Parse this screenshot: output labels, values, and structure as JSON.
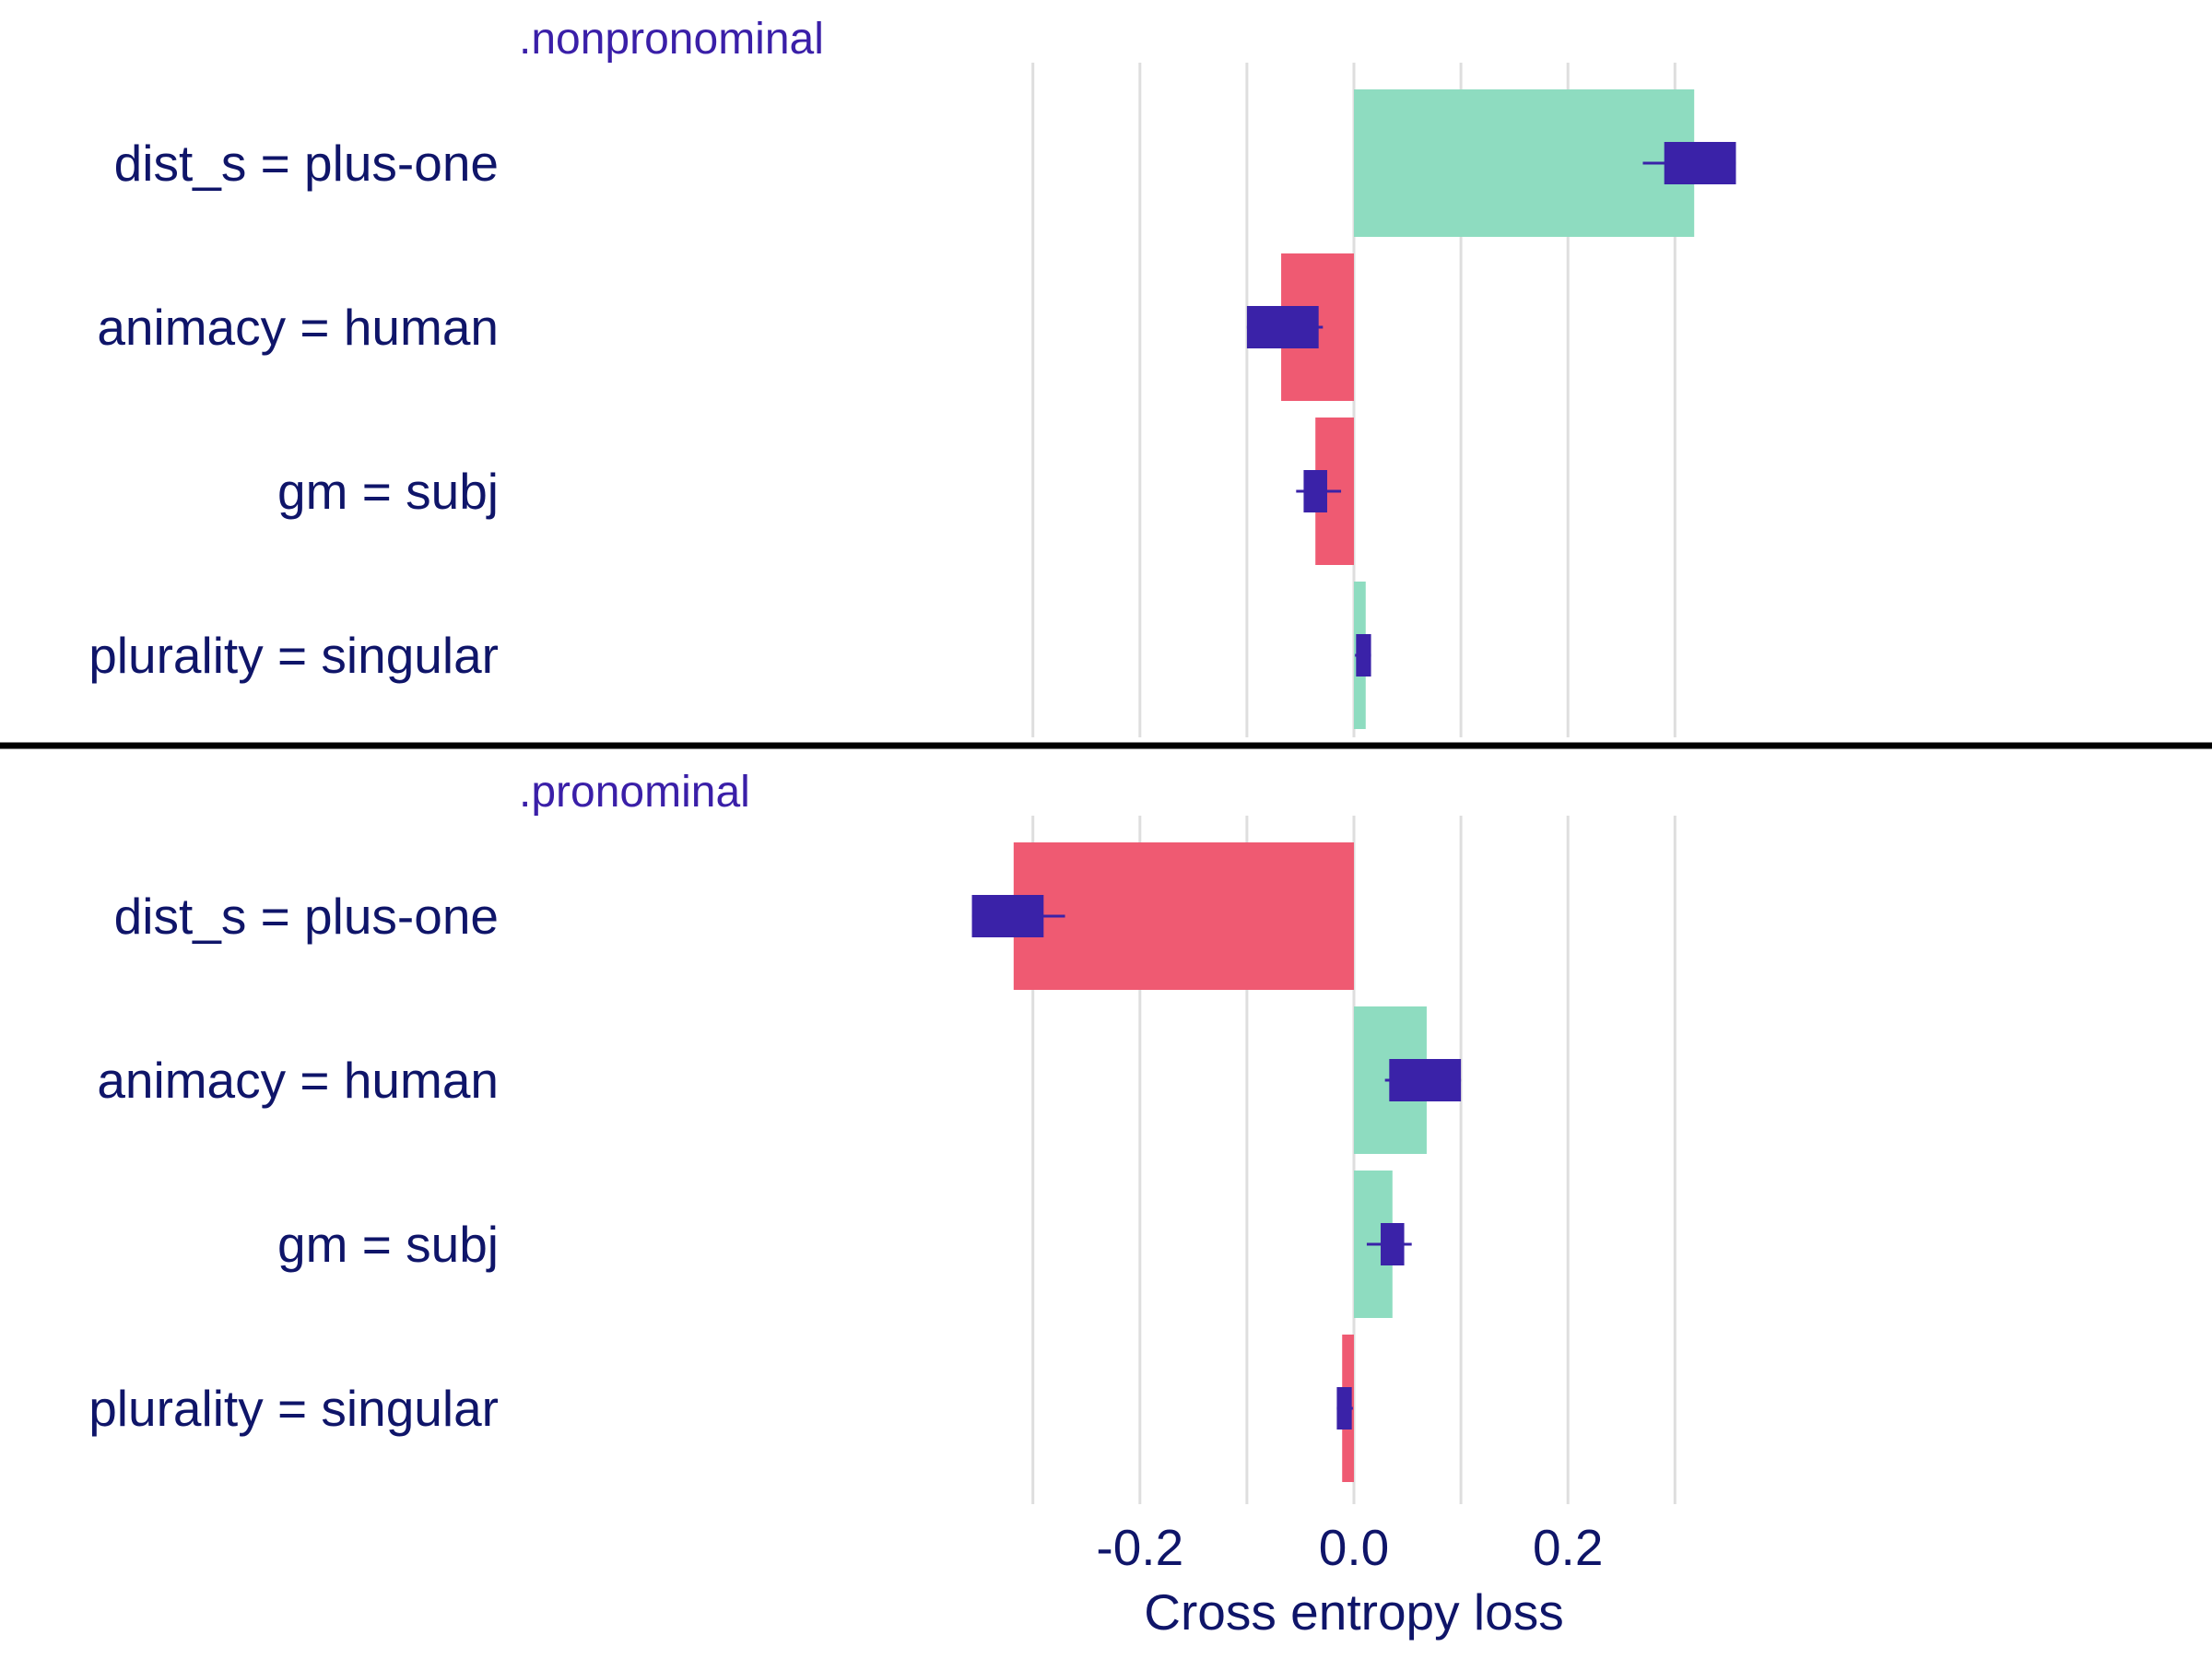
{
  "chart_data": {
    "type": "bar",
    "orientation": "horizontal",
    "xlabel": "Cross entropy loss",
    "x_ticks": [
      -0.2,
      0.0,
      0.2
    ],
    "x_tick_labels": [
      "-0.2",
      "0.0",
      "0.2"
    ],
    "xlim": [
      -0.37,
      0.38
    ],
    "grid": true,
    "colors": {
      "positive": "#8edcc0",
      "negative": "#ef5a72",
      "box": "#3a22a8",
      "text": "#0f1569",
      "panel_title": "#3a1fa8"
    },
    "panels": [
      {
        "title": ".nonpronominal",
        "categories": [
          "dist_s = plus-one",
          "animacy = human",
          "gm = subj",
          "plurality = singular"
        ],
        "values": [
          0.318,
          -0.068,
          -0.036,
          0.011
        ],
        "boxes": [
          {
            "q1": 0.29,
            "q3": 0.357,
            "min": 0.27,
            "max": 0.357
          },
          {
            "q1": -0.1,
            "q3": -0.033,
            "min": -0.1,
            "max": -0.029
          },
          {
            "q1": -0.047,
            "q3": -0.025,
            "min": -0.054,
            "max": -0.012
          },
          {
            "q1": 0.002,
            "q3": 0.016,
            "min": 0.001,
            "max": 0.016
          }
        ]
      },
      {
        "title": ".pronominal",
        "categories": [
          "dist_s = plus-one",
          "animacy = human",
          "gm = subj",
          "plurality = singular"
        ],
        "values": [
          -0.318,
          0.068,
          0.036,
          -0.011
        ],
        "boxes": [
          {
            "q1": -0.357,
            "q3": -0.29,
            "min": -0.357,
            "max": -0.27
          },
          {
            "q1": 0.033,
            "q3": 0.1,
            "min": 0.029,
            "max": 0.1
          },
          {
            "q1": 0.025,
            "q3": 0.047,
            "min": 0.012,
            "max": 0.054
          },
          {
            "q1": -0.016,
            "q3": -0.002,
            "min": -0.016,
            "max": -0.001
          }
        ]
      }
    ]
  }
}
